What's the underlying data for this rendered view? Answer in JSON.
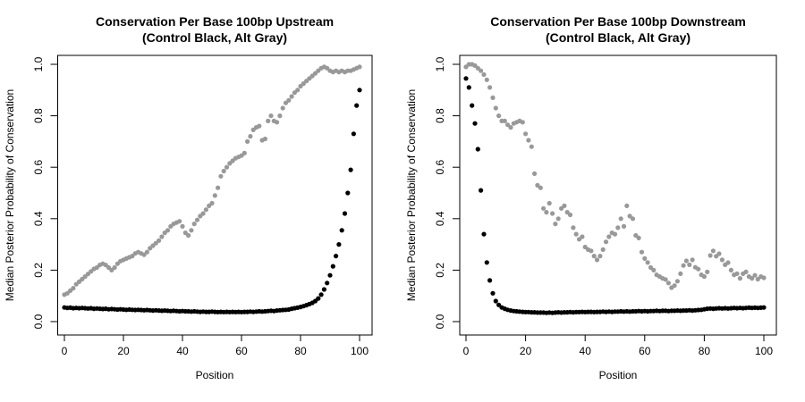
{
  "figure": {
    "background": "#ffffff",
    "colors": {
      "control": "#000000",
      "alt": "#999999"
    }
  },
  "positions": [
    0,
    1,
    2,
    3,
    4,
    5,
    6,
    7,
    8,
    9,
    10,
    11,
    12,
    13,
    14,
    15,
    16,
    17,
    18,
    19,
    20,
    21,
    22,
    23,
    24,
    25,
    26,
    27,
    28,
    29,
    30,
    31,
    32,
    33,
    34,
    35,
    36,
    37,
    38,
    39,
    40,
    41,
    42,
    43,
    44,
    45,
    46,
    47,
    48,
    49,
    50,
    51,
    52,
    53,
    54,
    55,
    56,
    57,
    58,
    59,
    60,
    61,
    62,
    63,
    64,
    65,
    66,
    67,
    68,
    69,
    70,
    71,
    72,
    73,
    74,
    75,
    76,
    77,
    78,
    79,
    80,
    81,
    82,
    83,
    84,
    85,
    86,
    87,
    88,
    89,
    90,
    91,
    92,
    93,
    94,
    95,
    96,
    97,
    98,
    99,
    100
  ],
  "chart_data": [
    {
      "id": "upstream",
      "type": "scatter",
      "title": "Conservation Per Base 100bp Upstream",
      "subtitle": "(Control Black, Alt Gray)",
      "xlabel": "Position",
      "ylabel": "Median Posterior Probability of Conservation",
      "xlim": [
        0,
        100
      ],
      "ylim": [
        0.0,
        1.0
      ],
      "xticks": [
        0,
        20,
        40,
        60,
        80,
        100
      ],
      "yticks": [
        "0.0",
        "0.2",
        "0.4",
        "0.6",
        "0.8",
        "1.0"
      ],
      "grid": false,
      "legend": "none (colors described in subtitle)",
      "series": [
        {
          "name": "Alt",
          "color": "#999999",
          "values": [
            0.105,
            0.11,
            0.12,
            0.13,
            0.145,
            0.155,
            0.165,
            0.175,
            0.185,
            0.195,
            0.205,
            0.21,
            0.22,
            0.225,
            0.22,
            0.21,
            0.2,
            0.21,
            0.225,
            0.235,
            0.24,
            0.245,
            0.25,
            0.255,
            0.265,
            0.27,
            0.265,
            0.26,
            0.27,
            0.285,
            0.295,
            0.305,
            0.315,
            0.33,
            0.345,
            0.355,
            0.37,
            0.38,
            0.385,
            0.39,
            0.37,
            0.345,
            0.335,
            0.355,
            0.38,
            0.395,
            0.41,
            0.42,
            0.435,
            0.45,
            0.46,
            0.49,
            0.52,
            0.565,
            0.585,
            0.6,
            0.615,
            0.625,
            0.635,
            0.64,
            0.645,
            0.655,
            0.7,
            0.72,
            0.745,
            0.755,
            0.76,
            0.705,
            0.71,
            0.78,
            0.8,
            0.78,
            0.775,
            0.8,
            0.83,
            0.85,
            0.86,
            0.875,
            0.89,
            0.9,
            0.915,
            0.925,
            0.935,
            0.945,
            0.955,
            0.965,
            0.975,
            0.985,
            0.99,
            0.985,
            0.975,
            0.97,
            0.975,
            0.97,
            0.975,
            0.97,
            0.975,
            0.975,
            0.98,
            0.985,
            0.99
          ]
        },
        {
          "name": "Control",
          "color": "#000000",
          "values": [
            0.055,
            0.053,
            0.054,
            0.052,
            0.053,
            0.052,
            0.053,
            0.052,
            0.051,
            0.052,
            0.05,
            0.051,
            0.05,
            0.049,
            0.05,
            0.048,
            0.049,
            0.048,
            0.047,
            0.048,
            0.047,
            0.046,
            0.047,
            0.046,
            0.045,
            0.046,
            0.045,
            0.044,
            0.045,
            0.044,
            0.043,
            0.044,
            0.043,
            0.042,
            0.043,
            0.042,
            0.041,
            0.042,
            0.041,
            0.04,
            0.041,
            0.04,
            0.04,
            0.039,
            0.04,
            0.039,
            0.038,
            0.039,
            0.038,
            0.038,
            0.039,
            0.038,
            0.037,
            0.038,
            0.037,
            0.038,
            0.037,
            0.038,
            0.037,
            0.038,
            0.037,
            0.038,
            0.038,
            0.039,
            0.038,
            0.039,
            0.04,
            0.039,
            0.04,
            0.041,
            0.042,
            0.041,
            0.043,
            0.044,
            0.045,
            0.046,
            0.047,
            0.05,
            0.052,
            0.054,
            0.057,
            0.06,
            0.064,
            0.068,
            0.073,
            0.08,
            0.09,
            0.105,
            0.125,
            0.15,
            0.18,
            0.215,
            0.255,
            0.3,
            0.355,
            0.42,
            0.5,
            0.59,
            0.73,
            0.84,
            0.9
          ]
        }
      ]
    },
    {
      "id": "downstream",
      "type": "scatter",
      "title": "Conservation Per Base 100bp Downstream",
      "subtitle": "(Control Black, Alt Gray)",
      "xlabel": "Position",
      "ylabel": "Median Posterior Probability of Conservation",
      "xlim": [
        0,
        100
      ],
      "ylim": [
        0.0,
        1.0
      ],
      "xticks": [
        0,
        20,
        40,
        60,
        80,
        100
      ],
      "yticks": [
        "0.0",
        "0.2",
        "0.4",
        "0.6",
        "0.8",
        "1.0"
      ],
      "grid": false,
      "legend": "none (colors described in subtitle)",
      "series": [
        {
          "name": "Alt",
          "color": "#999999",
          "values": [
            0.99,
            1.0,
            1.0,
            0.995,
            0.985,
            0.975,
            0.96,
            0.94,
            0.91,
            0.87,
            0.83,
            0.8,
            0.78,
            0.78,
            0.765,
            0.755,
            0.77,
            0.775,
            0.78,
            0.775,
            0.73,
            0.705,
            0.68,
            0.575,
            0.53,
            0.52,
            0.44,
            0.425,
            0.46,
            0.42,
            0.38,
            0.4,
            0.44,
            0.45,
            0.425,
            0.415,
            0.365,
            0.34,
            0.32,
            0.33,
            0.29,
            0.28,
            0.275,
            0.255,
            0.24,
            0.255,
            0.28,
            0.31,
            0.33,
            0.345,
            0.34,
            0.365,
            0.4,
            0.37,
            0.45,
            0.41,
            0.4,
            0.335,
            0.325,
            0.27,
            0.245,
            0.23,
            0.21,
            0.2,
            0.182,
            0.175,
            0.168,
            0.164,
            0.15,
            0.132,
            0.14,
            0.157,
            0.186,
            0.218,
            0.236,
            0.221,
            0.24,
            0.211,
            0.204,
            0.182,
            0.175,
            0.193,
            0.257,
            0.275,
            0.254,
            0.264,
            0.24,
            0.221,
            0.229,
            0.2,
            0.182,
            0.186,
            0.168,
            0.186,
            0.193,
            0.175,
            0.168,
            0.18,
            0.165,
            0.175,
            0.17
          ]
        },
        {
          "name": "Control",
          "color": "#000000",
          "values": [
            0.945,
            0.91,
            0.84,
            0.77,
            0.67,
            0.51,
            0.34,
            0.23,
            0.16,
            0.11,
            0.08,
            0.065,
            0.055,
            0.05,
            0.046,
            0.043,
            0.041,
            0.04,
            0.039,
            0.038,
            0.037,
            0.037,
            0.036,
            0.036,
            0.035,
            0.035,
            0.035,
            0.034,
            0.035,
            0.034,
            0.035,
            0.036,
            0.035,
            0.036,
            0.036,
            0.037,
            0.036,
            0.037,
            0.037,
            0.038,
            0.037,
            0.038,
            0.038,
            0.037,
            0.038,
            0.038,
            0.039,
            0.038,
            0.039,
            0.038,
            0.039,
            0.039,
            0.04,
            0.039,
            0.04,
            0.039,
            0.04,
            0.04,
            0.041,
            0.04,
            0.041,
            0.04,
            0.041,
            0.041,
            0.042,
            0.041,
            0.042,
            0.042,
            0.041,
            0.042,
            0.042,
            0.043,
            0.042,
            0.043,
            0.043,
            0.044,
            0.043,
            0.044,
            0.045,
            0.046,
            0.048,
            0.05,
            0.051,
            0.05,
            0.051,
            0.052,
            0.051,
            0.052,
            0.051,
            0.052,
            0.053,
            0.052,
            0.053,
            0.052,
            0.053,
            0.054,
            0.053,
            0.054,
            0.053,
            0.054,
            0.055
          ]
        }
      ]
    }
  ]
}
